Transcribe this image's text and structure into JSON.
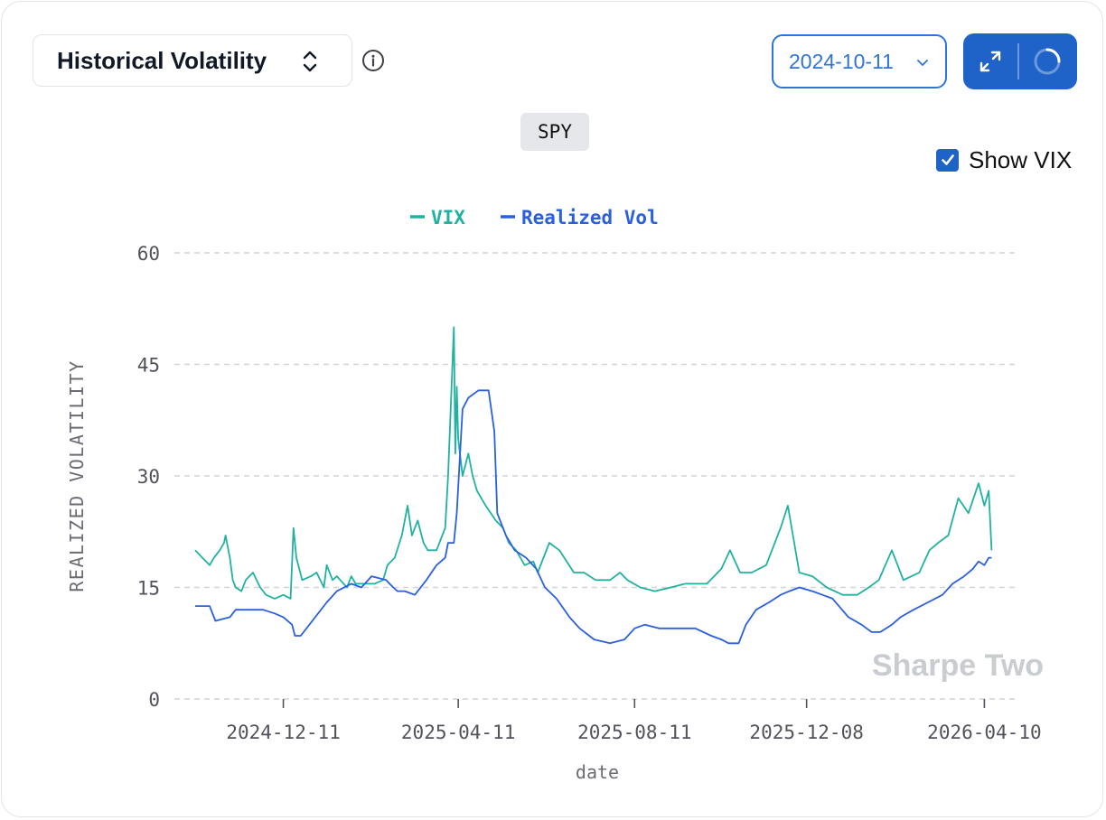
{
  "header": {
    "metric_label": "Historical Volatility",
    "date_label": "2024-10-11",
    "ticker": "SPY",
    "show_vix_label": "Show VIX",
    "show_vix_checked": true
  },
  "icons": {
    "metric_toggle": "chevron-up-down-icon",
    "info": "info-icon",
    "date_dropdown": "chevron-down-icon",
    "expand": "expand-icon",
    "reload": "loading-spinner-icon"
  },
  "colors": {
    "accent": "#1f63c9",
    "vix": "#20b2a0",
    "realized": "#2a5fe0",
    "grid": "#d4d4d8",
    "watermark": "#c9ccd1"
  },
  "watermark": "Sharpe Two",
  "chart_data": {
    "type": "line",
    "title": "",
    "xlabel": "date",
    "ylabel": "REALIZED VOLATILITY",
    "ylim": [
      0,
      60
    ],
    "yticks": [
      0,
      15,
      30,
      45,
      60
    ],
    "xlim": [
      "2024-10-11",
      "2026-04-16"
    ],
    "xticks": [
      "2024-12-11",
      "2025-04-11",
      "2025-08-11",
      "2025-12-08",
      "2026-04-10"
    ],
    "grid": true,
    "legend_position": "top-center",
    "series": [
      {
        "name": "VIX",
        "x": [
          "2024-10-11",
          "2024-10-16",
          "2024-10-21",
          "2024-10-24",
          "2024-10-28",
          "2024-10-31",
          "2024-11-01",
          "2024-11-04",
          "2024-11-06",
          "2024-11-08",
          "2024-11-12",
          "2024-11-15",
          "2024-11-20",
          "2024-11-25",
          "2024-11-29",
          "2024-12-05",
          "2024-12-11",
          "2024-12-16",
          "2024-12-18",
          "2024-12-20",
          "2024-12-24",
          "2024-12-30",
          "2025-01-03",
          "2025-01-08",
          "2025-01-10",
          "2025-01-14",
          "2025-01-17",
          "2025-01-24",
          "2025-01-27",
          "2025-01-30",
          "2025-02-05",
          "2025-02-12",
          "2025-02-18",
          "2025-02-21",
          "2025-02-26",
          "2025-03-03",
          "2025-03-07",
          "2025-03-10",
          "2025-03-14",
          "2025-03-18",
          "2025-03-21",
          "2025-03-27",
          "2025-04-02",
          "2025-04-04",
          "2025-04-08",
          "2025-04-09",
          "2025-04-10",
          "2025-04-11",
          "2025-04-14",
          "2025-04-18",
          "2025-04-21",
          "2025-04-24",
          "2025-04-30",
          "2025-05-07",
          "2025-05-12",
          "2025-05-16",
          "2025-05-21",
          "2025-05-27",
          "2025-06-02",
          "2025-06-05",
          "2025-06-10",
          "2025-06-13",
          "2025-06-20",
          "2025-06-30",
          "2025-07-07",
          "2025-07-15",
          "2025-07-25",
          "2025-08-01",
          "2025-08-06",
          "2025-08-15",
          "2025-08-25",
          "2025-09-05",
          "2025-09-15",
          "2025-09-30",
          "2025-10-10",
          "2025-10-16",
          "2025-10-23",
          "2025-10-31",
          "2025-11-10",
          "2025-11-20",
          "2025-11-25",
          "2025-12-03",
          "2025-12-12",
          "2025-12-22",
          "2026-01-02",
          "2026-01-12",
          "2026-01-20",
          "2026-01-27",
          "2026-02-05",
          "2026-02-13",
          "2026-02-24",
          "2026-03-03",
          "2026-03-09",
          "2026-03-16",
          "2026-03-23",
          "2026-03-30",
          "2026-04-06",
          "2026-04-10",
          "2026-04-13",
          "2026-04-15"
        ],
        "y": [
          20,
          19,
          18,
          19,
          20,
          21,
          22,
          19,
          16,
          15,
          14.5,
          16,
          17,
          15,
          14,
          13.5,
          14,
          13.5,
          23,
          19,
          16,
          16.5,
          17,
          15,
          18,
          16,
          16.5,
          15,
          16.5,
          15.5,
          15.5,
          15.5,
          16,
          18,
          19,
          22,
          26,
          22,
          24,
          21,
          20,
          20,
          23,
          30,
          50,
          33,
          42,
          35,
          30,
          33,
          30,
          28,
          26,
          24,
          23,
          21,
          20,
          18,
          18.5,
          17,
          19.5,
          21,
          20,
          17,
          17,
          16,
          16,
          17,
          16,
          15,
          14.5,
          15,
          15.5,
          15.5,
          17.5,
          20,
          17,
          17,
          18,
          23,
          26,
          17,
          16.5,
          15,
          14,
          14,
          15,
          16,
          20,
          16,
          17,
          20,
          21,
          22,
          27,
          25,
          29,
          26,
          28,
          20
        ],
        "values": [
          20,
          19,
          18,
          19,
          20,
          21,
          22,
          19,
          16,
          15,
          14.5,
          16,
          17,
          15,
          14,
          13.5,
          14,
          13.5,
          23,
          19,
          16,
          16.5,
          17,
          15,
          18,
          16,
          16.5,
          15,
          16.5,
          15.5,
          15.5,
          15.5,
          16,
          18,
          19,
          22,
          26,
          22,
          24,
          21,
          20,
          20,
          23,
          30,
          50,
          33,
          42,
          35,
          30,
          33,
          30,
          28,
          26,
          24,
          23,
          21,
          20,
          18,
          18.5,
          17,
          19.5,
          21,
          20,
          17,
          17,
          16,
          16,
          17,
          16,
          15,
          14.5,
          15,
          15.5,
          15.5,
          17.5,
          20,
          17,
          17,
          18,
          23,
          26,
          17,
          16.5,
          15,
          14,
          14,
          15,
          16,
          20,
          16,
          17,
          20,
          21,
          22,
          27,
          25,
          29,
          26,
          28,
          20
        ]
      },
      {
        "name": "Realized Vol",
        "x": [
          "2024-10-11",
          "2024-10-16",
          "2024-10-21",
          "2024-10-25",
          "2024-11-04",
          "2024-11-08",
          "2024-11-18",
          "2024-11-27",
          "2024-12-05",
          "2024-12-11",
          "2024-12-17",
          "2024-12-19",
          "2024-12-23",
          "2025-01-02",
          "2025-01-10",
          "2025-01-17",
          "2025-01-27",
          "2025-02-03",
          "2025-02-10",
          "2025-02-20",
          "2025-02-25",
          "2025-02-28",
          "2025-03-05",
          "2025-03-12",
          "2025-03-20",
          "2025-03-27",
          "2025-04-02",
          "2025-04-04",
          "2025-04-08",
          "2025-04-10",
          "2025-04-14",
          "2025-04-18",
          "2025-04-25",
          "2025-05-02",
          "2025-05-06",
          "2025-05-08",
          "2025-05-14",
          "2025-05-20",
          "2025-05-28",
          "2025-06-04",
          "2025-06-10",
          "2025-06-18",
          "2025-06-27",
          "2025-07-04",
          "2025-07-14",
          "2025-07-25",
          "2025-08-04",
          "2025-08-11",
          "2025-08-18",
          "2025-08-28",
          "2025-09-10",
          "2025-09-22",
          "2025-10-03",
          "2025-10-10",
          "2025-10-15",
          "2025-10-22",
          "2025-10-27",
          "2025-11-03",
          "2025-11-12",
          "2025-11-20",
          "2025-11-26",
          "2025-12-03",
          "2025-12-12",
          "2025-12-19",
          "2025-12-26",
          "2026-01-06",
          "2026-01-15",
          "2026-01-22",
          "2026-01-28",
          "2026-02-05",
          "2026-02-11",
          "2026-02-20",
          "2026-03-02",
          "2026-03-12",
          "2026-03-19",
          "2026-03-27",
          "2026-04-02",
          "2026-04-06",
          "2026-04-10",
          "2026-04-13",
          "2026-04-15"
        ],
        "y": [
          12.5,
          12.5,
          12.5,
          10.5,
          11,
          12,
          12,
          12,
          11.5,
          11,
          10,
          8.5,
          8.5,
          11,
          13,
          14.5,
          15.5,
          15,
          16.5,
          16,
          15,
          14.5,
          14.5,
          14,
          16,
          18,
          19,
          21,
          21,
          25,
          39,
          40.5,
          41.5,
          41.5,
          36,
          25,
          22,
          20,
          19,
          17.5,
          15,
          13.5,
          11,
          9.5,
          8,
          7.5,
          8,
          9.5,
          10,
          9.5,
          9.5,
          9.5,
          8.5,
          8,
          7.5,
          7.5,
          10,
          12,
          13,
          14,
          14.5,
          15,
          14.5,
          14,
          13.5,
          11,
          10,
          9,
          9,
          10,
          11,
          12,
          13,
          14,
          15.5,
          16.5,
          17.5,
          18.5,
          18,
          19,
          19
        ]
      }
    ]
  }
}
